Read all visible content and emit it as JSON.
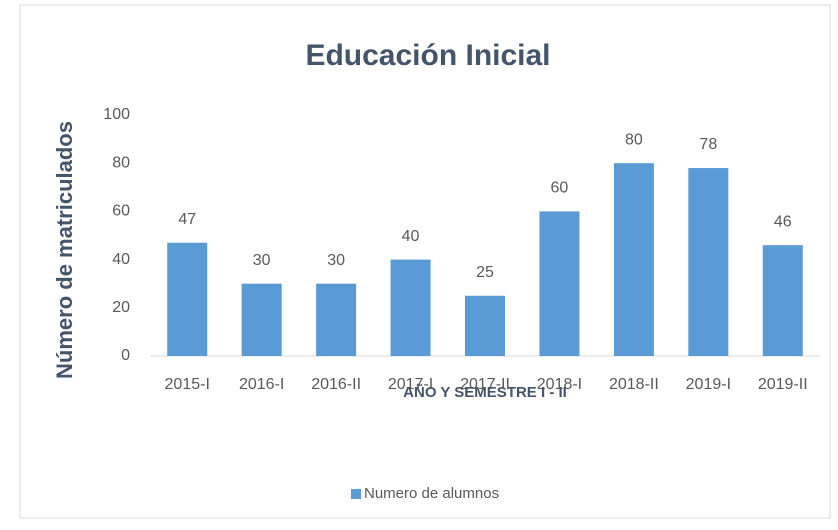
{
  "chart_data": {
    "type": "bar",
    "title": "Educación Inicial",
    "x_label": "AÑO Y SEMESTRE I - II",
    "y_label": "Número de matriculados",
    "categories": [
      "2015-I",
      "2016-I",
      "2016-II",
      "2017-I",
      "2017-II",
      "2018-I",
      "2018-II",
      "2019-I",
      "2019-II"
    ],
    "series": [
      {
        "name": "Numero de alumnos",
        "color": "#5b9bd5",
        "values": [
          47,
          30,
          30,
          40,
          25,
          60,
          80,
          78,
          46
        ]
      }
    ],
    "ylim": [
      0,
      100
    ],
    "yticks": [
      0,
      20,
      40,
      60,
      80,
      100
    ],
    "grid": false,
    "legend": "bottom"
  }
}
